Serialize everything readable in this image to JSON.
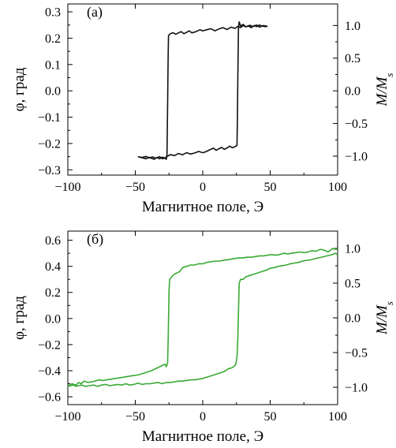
{
  "chart_data": [
    {
      "type": "line",
      "panel_label": "(а)",
      "xlabel": "Магнитное поле, Э",
      "ylabel": "φ, град",
      "y2label": "M/M",
      "y2label_sub": "s",
      "xlim": [
        -100,
        100
      ],
      "ylim": [
        -0.32,
        0.33
      ],
      "y2lim": [
        -1.29,
        1.33
      ],
      "xticks": [
        -100,
        -50,
        0,
        50,
        100
      ],
      "yticks": [
        0.3,
        0.2,
        0.1,
        0.0,
        -0.1,
        -0.2,
        -0.3
      ],
      "y2ticks": [
        1.0,
        0.5,
        0.0,
        -0.5,
        -1.0
      ],
      "xtick_labels": [
        "−100",
        "−50",
        "0",
        "50",
        "100"
      ],
      "ytick_labels": [
        "0.3",
        "0.2",
        "0.1",
        "0.0",
        "−0.1",
        "−0.2",
        "−0.3"
      ],
      "y2tick_labels": [
        "1.0",
        "0.5",
        "0.0",
        "−0.5",
        "−1.0"
      ],
      "color": "#111111",
      "series": [
        {
          "x": [
            -48,
            -45,
            -42,
            -40,
            -37,
            -35,
            -32,
            -30,
            -28,
            -27,
            -26.5,
            -26,
            -25.7,
            -25.4,
            -24,
            -22,
            -20,
            -18,
            -16,
            -14,
            -12,
            -10,
            -8,
            -5,
            -2,
            0,
            3,
            6,
            9,
            12,
            15,
            18,
            21,
            24,
            26,
            28,
            30,
            32,
            34,
            36,
            38,
            40,
            42,
            44,
            46,
            48
          ],
          "y": [
            -0.25,
            -0.253,
            -0.249,
            -0.255,
            -0.251,
            -0.256,
            -0.25,
            -0.258,
            -0.255,
            -0.26,
            -0.24,
            -0.05,
            0.12,
            0.21,
            0.217,
            0.221,
            0.215,
            0.22,
            0.225,
            0.217,
            0.222,
            0.228,
            0.22,
            0.225,
            0.232,
            0.228,
            0.232,
            0.236,
            0.228,
            0.235,
            0.24,
            0.233,
            0.242,
            0.237,
            0.245,
            0.24,
            0.248,
            0.243,
            0.246,
            0.24,
            0.248,
            0.244,
            0.25,
            0.246,
            0.244,
            0.245
          ]
        },
        {
          "x": [
            48,
            45,
            42,
            40,
            37,
            35,
            32,
            30,
            28,
            27,
            26.5,
            26,
            25.7,
            25.4,
            24,
            22,
            20,
            18,
            16,
            14,
            12,
            10,
            8,
            5,
            2,
            0,
            -3,
            -6,
            -9,
            -12,
            -15,
            -18,
            -21,
            -24,
            -26,
            -28,
            -30,
            -32,
            -34,
            -36,
            -38,
            -40,
            -42,
            -44,
            -46,
            -48
          ],
          "y": [
            0.245,
            0.248,
            0.242,
            0.25,
            0.244,
            0.249,
            0.243,
            0.252,
            0.246,
            0.262,
            0.24,
            0.05,
            -0.12,
            -0.207,
            -0.212,
            -0.216,
            -0.21,
            -0.217,
            -0.222,
            -0.215,
            -0.22,
            -0.226,
            -0.218,
            -0.224,
            -0.232,
            -0.235,
            -0.23,
            -0.236,
            -0.24,
            -0.235,
            -0.243,
            -0.238,
            -0.246,
            -0.242,
            -0.248,
            -0.255,
            -0.252,
            -0.258,
            -0.253,
            -0.26,
            -0.256,
            -0.252,
            -0.258,
            -0.255,
            -0.253,
            -0.25
          ]
        }
      ]
    },
    {
      "type": "line",
      "panel_label": "(б)",
      "xlabel": "Магнитное поле, Э",
      "ylabel": "φ, град",
      "y2label": "M/M",
      "y2label_sub": "s",
      "xlim": [
        -100,
        100
      ],
      "ylim": [
        -0.66,
        0.67
      ],
      "y2lim": [
        -1.25,
        1.25
      ],
      "xticks": [
        -100,
        -50,
        0,
        50,
        100
      ],
      "yticks": [
        0.6,
        0.4,
        0.2,
        0.0,
        -0.2,
        -0.4,
        -0.6
      ],
      "y2ticks": [
        1.0,
        0.5,
        0.0,
        -0.5,
        -1.0
      ],
      "xtick_labels": [
        "−100",
        "−50",
        "0",
        "50",
        "100"
      ],
      "ytick_labels": [
        "0.6",
        "0.4",
        "0.2",
        "0.0",
        "−0.2",
        "−0.4",
        "−0.6"
      ],
      "y2tick_labels": [
        "1.0",
        "0.5",
        "0.0",
        "−0.5",
        "−1.0"
      ],
      "color": "#3aaa35",
      "series": [
        {
          "x": [
            -100,
            -97,
            -94,
            -92,
            -90,
            -88,
            -85,
            -82,
            -80,
            -77,
            -74,
            -71,
            -68,
            -65,
            -62,
            -59,
            -56,
            -53,
            -50,
            -47,
            -44,
            -41,
            -38,
            -35,
            -32,
            -30,
            -28,
            -27,
            -26,
            -25.5,
            -25,
            -24.5,
            -23,
            -21,
            -19,
            -17,
            -15,
            -12,
            -9,
            -6,
            -3,
            0,
            3,
            6,
            9,
            12,
            15,
            18,
            21,
            24,
            27,
            30,
            33,
            36,
            39,
            42,
            45,
            48,
            51,
            54,
            57,
            60,
            63,
            66,
            69,
            72,
            75,
            78,
            81,
            84,
            87,
            90,
            93,
            96,
            100
          ],
          "y": [
            -0.52,
            -0.5,
            -0.51,
            -0.49,
            -0.5,
            -0.48,
            -0.49,
            -0.485,
            -0.48,
            -0.47,
            -0.475,
            -0.47,
            -0.465,
            -0.46,
            -0.455,
            -0.45,
            -0.445,
            -0.44,
            -0.435,
            -0.43,
            -0.42,
            -0.41,
            -0.4,
            -0.385,
            -0.37,
            -0.36,
            -0.35,
            -0.37,
            -0.34,
            -0.1,
            0.22,
            0.3,
            0.32,
            0.34,
            0.35,
            0.36,
            0.39,
            0.4,
            0.41,
            0.41,
            0.42,
            0.42,
            0.43,
            0.435,
            0.44,
            0.44,
            0.445,
            0.45,
            0.455,
            0.46,
            0.465,
            0.465,
            0.47,
            0.47,
            0.475,
            0.48,
            0.48,
            0.485,
            0.49,
            0.485,
            0.49,
            0.5,
            0.495,
            0.5,
            0.505,
            0.51,
            0.505,
            0.51,
            0.52,
            0.515,
            0.53,
            0.525,
            0.51,
            0.535,
            0.53
          ]
        },
        {
          "x": [
            100,
            98,
            96,
            94,
            92,
            90,
            88,
            86,
            84,
            82,
            80,
            77,
            74,
            71,
            68,
            65,
            62,
            59,
            56,
            53,
            50,
            47,
            44,
            41,
            38,
            35,
            32,
            30,
            28,
            27,
            26,
            25.5,
            25,
            24.5,
            23,
            21,
            19,
            17,
            15,
            12,
            9,
            6,
            3,
            0,
            -3,
            -6,
            -9,
            -12,
            -15,
            -18,
            -21,
            -24,
            -27,
            -30,
            -33,
            -36,
            -39,
            -42,
            -45,
            -48,
            -51,
            -54,
            -57,
            -60,
            -63,
            -66,
            -69,
            -72,
            -75,
            -78,
            -81,
            -84,
            -87,
            -90,
            -92,
            -94,
            -96,
            -98,
            -100
          ],
          "y": [
            0.49,
            0.5,
            0.49,
            0.485,
            0.48,
            0.475,
            0.47,
            0.465,
            0.46,
            0.455,
            0.45,
            0.445,
            0.44,
            0.43,
            0.425,
            0.42,
            0.41,
            0.405,
            0.4,
            0.39,
            0.385,
            0.37,
            0.36,
            0.35,
            0.34,
            0.33,
            0.32,
            0.3,
            0.3,
            0.27,
            -0.15,
            -0.28,
            -0.32,
            -0.35,
            -0.37,
            -0.38,
            -0.385,
            -0.4,
            -0.41,
            -0.42,
            -0.43,
            -0.44,
            -0.45,
            -0.46,
            -0.465,
            -0.47,
            -0.47,
            -0.475,
            -0.48,
            -0.48,
            -0.485,
            -0.49,
            -0.49,
            -0.5,
            -0.49,
            -0.495,
            -0.5,
            -0.5,
            -0.505,
            -0.495,
            -0.505,
            -0.51,
            -0.5,
            -0.51,
            -0.505,
            -0.51,
            -0.515,
            -0.505,
            -0.51,
            -0.52,
            -0.51,
            -0.515,
            -0.52,
            -0.51,
            -0.515,
            -0.52,
            -0.51,
            -0.515,
            -0.52
          ]
        }
      ]
    }
  ]
}
